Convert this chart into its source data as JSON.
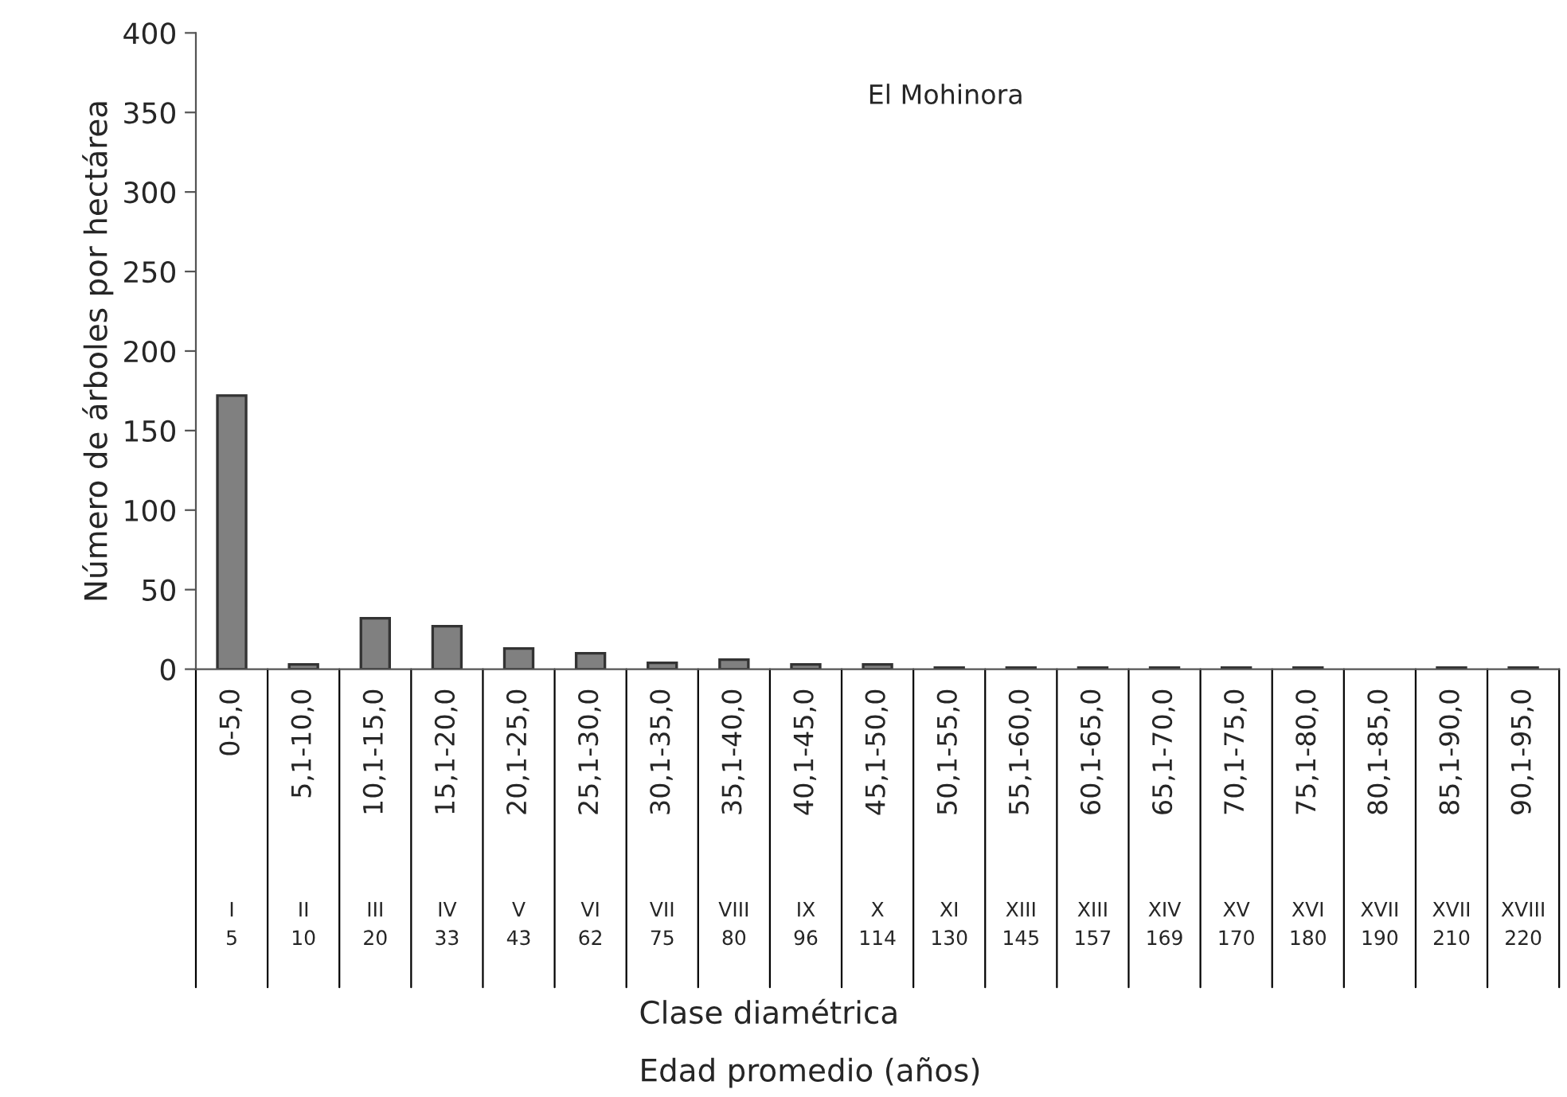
{
  "chart_data": {
    "type": "bar",
    "title": "El Mohinora",
    "ylabel": "Número de árboles por hectárea",
    "annotations": [
      "Clase diamétrica",
      "Edad promedio (años)"
    ],
    "categories": [
      "0-5,0\nI\n5",
      "5,1-10,0\nII\n10",
      "10,1-15,0\nIII\n20",
      "15,1-20,0\nIV\n33",
      "20,1-25,0\nV\n43",
      "25,1-30,0\nVI\n62",
      "30,1-35,0\nVII\n75",
      "35,1-40,0\nVIII\n80",
      "40,1-45,0\nIX\n96",
      "45,1-50,0\nX\n114",
      "50,1-55,0\nXI\n130",
      "55,1-60,0\nXIII\n145",
      "60,1-65,0\nXIII\n157",
      "65,1-70,0\nXIV\n169",
      "70,1-75,0\nXV\n170",
      "75,1-80,0\nXVI\n180",
      "80,1-85,0\nXVII\n190",
      "85,1-90,0\nXVII\n210",
      "90,1-95,0\nXVIII\n220"
    ],
    "values": [
      172,
      3,
      32,
      27,
      13,
      10,
      4,
      6,
      3,
      3,
      1,
      1,
      1,
      1,
      1,
      1,
      0,
      1,
      1
    ],
    "color": "#808080",
    "ylim": [
      0,
      400
    ],
    "yticks": [
      0,
      50,
      100,
      150,
      200,
      250,
      300,
      350,
      400
    ],
    "grid": false,
    "legend": false
  }
}
